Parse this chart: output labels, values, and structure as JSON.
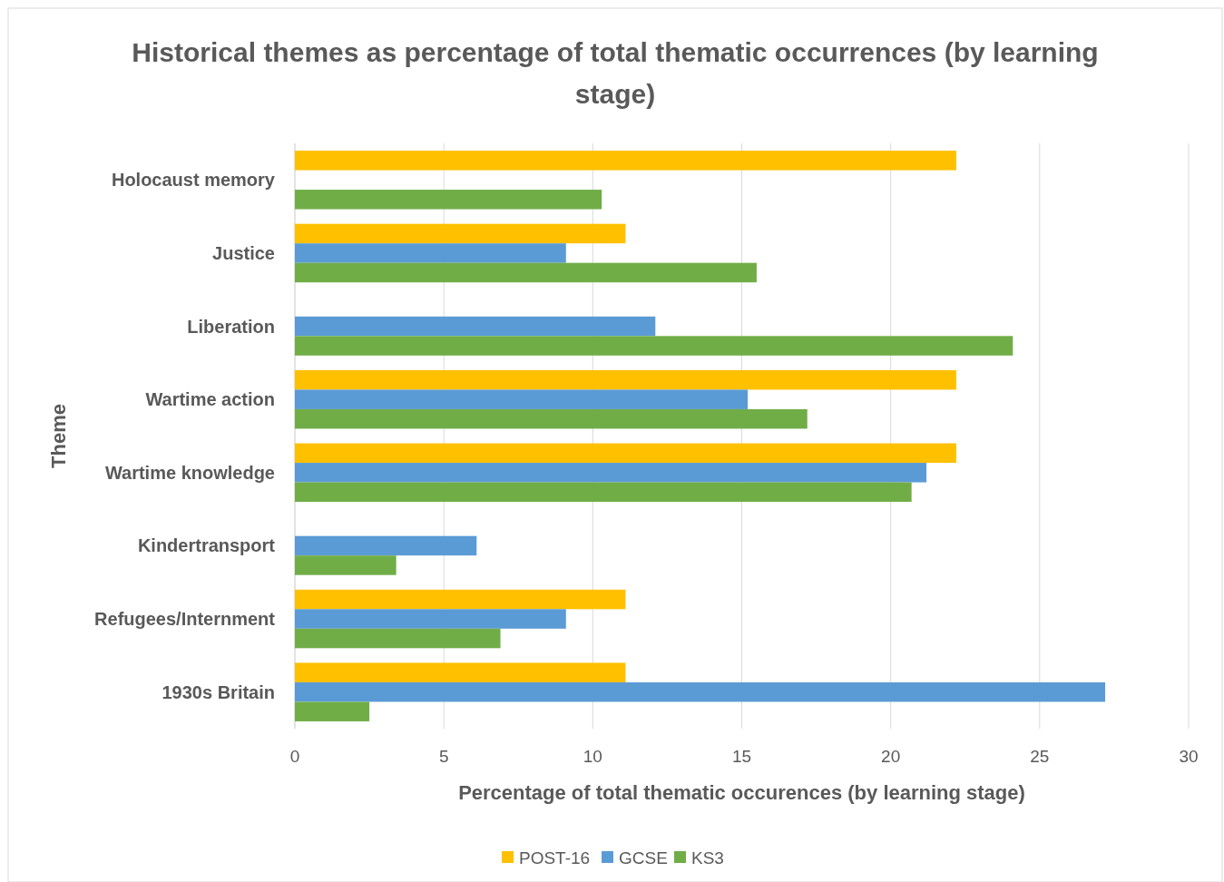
{
  "chart_data": {
    "type": "bar",
    "orientation": "horizontal",
    "title": "Historical themes as percentage of total thematic occurrences (by learning stage)",
    "xlabel": "Percentage of total thematic occurences (by learning stage)",
    "ylabel": "Theme",
    "categories": [
      "Holocaust memory",
      "Justice",
      "Liberation",
      "Wartime action",
      "Wartime knowledge",
      "Kindertransport",
      "Refugees/Internment",
      "1930s Britain"
    ],
    "series": [
      {
        "name": "POST-16",
        "color": "#ffc000",
        "values": [
          22.2,
          11.1,
          null,
          22.2,
          22.2,
          null,
          11.1,
          11.1
        ]
      },
      {
        "name": "GCSE",
        "color": "#5b9bd5",
        "values": [
          null,
          9.1,
          12.1,
          15.2,
          21.2,
          6.1,
          9.1,
          27.2
        ]
      },
      {
        "name": "KS3",
        "color": "#70ad47",
        "values": [
          10.3,
          15.5,
          24.1,
          17.2,
          20.7,
          3.4,
          6.9,
          2.5
        ]
      }
    ],
    "xlim": [
      0,
      30
    ],
    "xticks": [
      0,
      5,
      10,
      15,
      20,
      25,
      30
    ],
    "grid": "x",
    "legend": "bottom"
  }
}
